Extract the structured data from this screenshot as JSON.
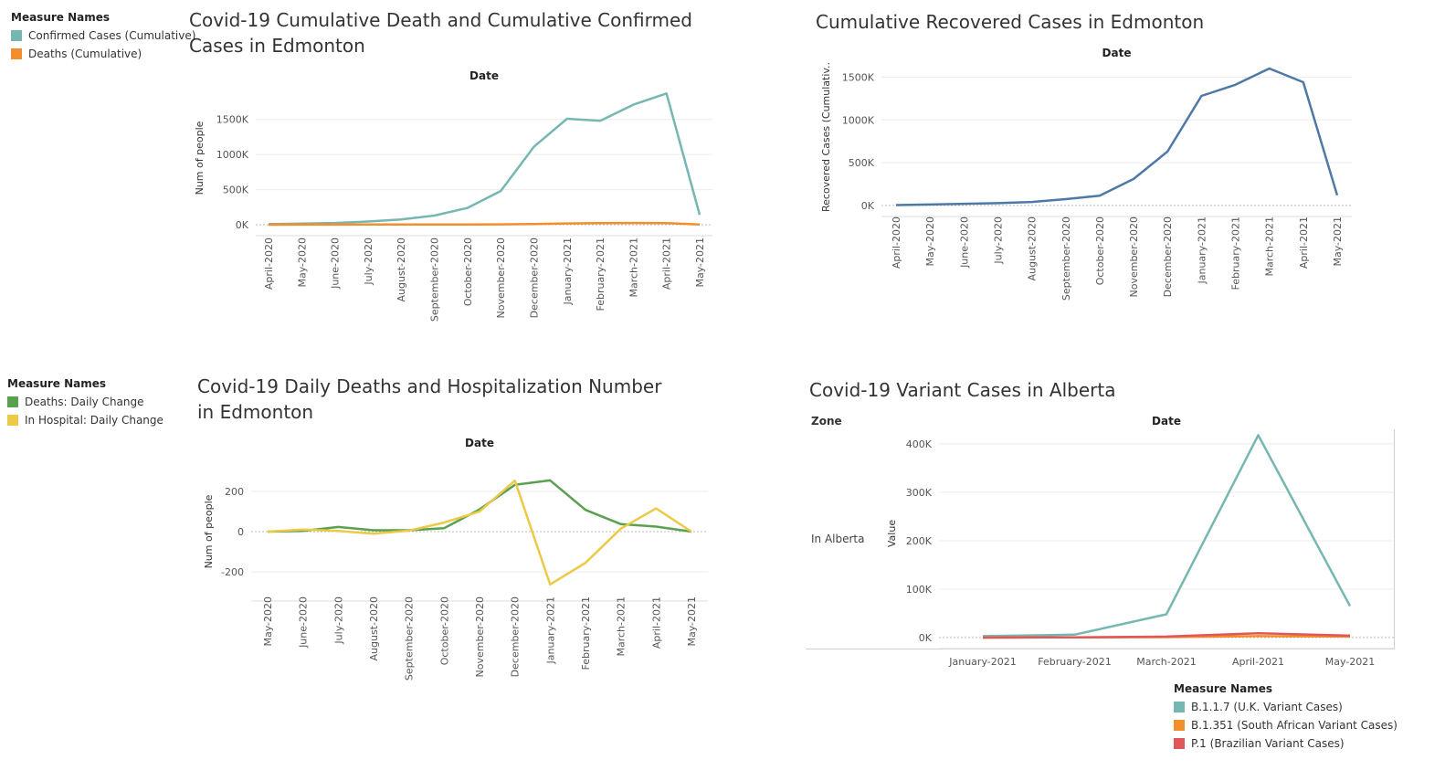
{
  "colors": {
    "teal": "#76b7b2",
    "orange": "#f28e2b",
    "blue": "#4e79a7",
    "green": "#59a14f",
    "yellow": "#edc948",
    "red": "#e15759"
  },
  "chart1": {
    "legend_title": "Measure Names",
    "legend": [
      "Confirmed Cases (Cumulative)",
      "Deaths (Cumulative)"
    ]
  },
  "chart3": {
    "legend_title": "Measure Names",
    "legend": [
      "Deaths: Daily Change",
      "In Hospital: Daily Change"
    ]
  },
  "chart4": {
    "legend_title": "Measure Names",
    "legend": [
      "B.1.1.7 (U.K. Variant Cases)",
      "B.1.351 (South African Variant Cases)",
      "P.1 (Brazilian Variant Cases)"
    ],
    "zone_header": "Zone",
    "row_label": "In Alberta"
  },
  "chart_data": [
    {
      "type": "line",
      "title": "Covid-19 Cumulative Death and Cumulative Confirmed Cases in Edmonton",
      "column_header": "Date",
      "ylabel": "Num of people",
      "x": [
        "April-2020",
        "May-2020",
        "June-2020",
        "July-2020",
        "August-2020",
        "September-2020",
        "October-2020",
        "November-2020",
        "December-2020",
        "January-2021",
        "February-2021",
        "March-2021",
        "April-2021",
        "May-2021"
      ],
      "yticks": [
        "0K",
        "500K",
        "1000K",
        "1500K"
      ],
      "ylim": [
        0,
        1900000
      ],
      "series": [
        {
          "name": "Confirmed Cases (Cumulative)",
          "color": "teal",
          "values": [
            8000,
            15000,
            25000,
            45000,
            75000,
            130000,
            240000,
            480000,
            1110000,
            1510000,
            1480000,
            1710000,
            1870000,
            140000
          ]
        },
        {
          "name": "Deaths (Cumulative)",
          "color": "orange",
          "values": [
            500,
            1000,
            1500,
            2000,
            2500,
            3000,
            3500,
            5000,
            9000,
            18000,
            22000,
            25000,
            22000,
            2000
          ]
        }
      ]
    },
    {
      "type": "line",
      "title": "Cumulative Recovered Cases in Edmonton",
      "column_header": "Date",
      "ylabel": "Recovered Cases (Cumulativ..",
      "x": [
        "April-2020",
        "May-2020",
        "June-2020",
        "July-2020",
        "August-2020",
        "September-2020",
        "October-2020",
        "November-2020",
        "December-2020",
        "January-2021",
        "February-2021",
        "March-2021",
        "April-2021",
        "May-2021"
      ],
      "yticks": [
        "0K",
        "500K",
        "1000K",
        "1500K"
      ],
      "ylim": [
        0,
        1600000
      ],
      "series": [
        {
          "name": "Recovered Cases (Cumulative)",
          "color": "blue",
          "values": [
            5000,
            12000,
            20000,
            28000,
            42000,
            75000,
            115000,
            310000,
            630000,
            1280000,
            1410000,
            1600000,
            1440000,
            120000
          ]
        }
      ]
    },
    {
      "type": "line",
      "title": "Covid-19 Daily Deaths and Hospitalization Number in Edmonton",
      "column_header": "Date",
      "ylabel": "Num of people",
      "x": [
        "May-2020",
        "June-2020",
        "July-2020",
        "August-2020",
        "September-2020",
        "October-2020",
        "November-2020",
        "December-2020",
        "January-2021",
        "February-2021",
        "March-2021",
        "April-2021",
        "May-2021"
      ],
      "yticks": [
        "-200",
        "0",
        "200"
      ],
      "ylim": [
        -290,
        290
      ],
      "series": [
        {
          "name": "Deaths: Daily Change",
          "color": "green",
          "values": [
            0,
            3,
            23,
            7,
            7,
            17,
            110,
            232,
            254,
            108,
            37,
            25,
            0
          ]
        },
        {
          "name": "In Hospital: Daily Change",
          "color": "yellow",
          "values": [
            0,
            10,
            3,
            -10,
            5,
            45,
            100,
            253,
            -262,
            -155,
            15,
            115,
            0
          ]
        }
      ]
    },
    {
      "type": "line",
      "title": "Covid-19 Variant Cases in Alberta",
      "column_header": "Date",
      "ylabel": "Value",
      "x": [
        "January-2021",
        "February-2021",
        "March-2021",
        "April-2021",
        "May-2021"
      ],
      "yticks": [
        "0K",
        "100K",
        "200K",
        "300K",
        "400K"
      ],
      "ylim": [
        0,
        430000
      ],
      "series": [
        {
          "name": "B.1.1.7 (U.K. Variant Cases)",
          "color": "teal",
          "values": [
            3000,
            6000,
            48000,
            418000,
            65000
          ]
        },
        {
          "name": "B.1.351 (South African Variant Cases)",
          "color": "orange",
          "values": [
            0,
            500,
            1000,
            3000,
            2000
          ]
        },
        {
          "name": "P.1 (Brazilian Variant Cases)",
          "color": "red",
          "values": [
            0,
            500,
            2000,
            9000,
            4000
          ]
        }
      ]
    }
  ]
}
